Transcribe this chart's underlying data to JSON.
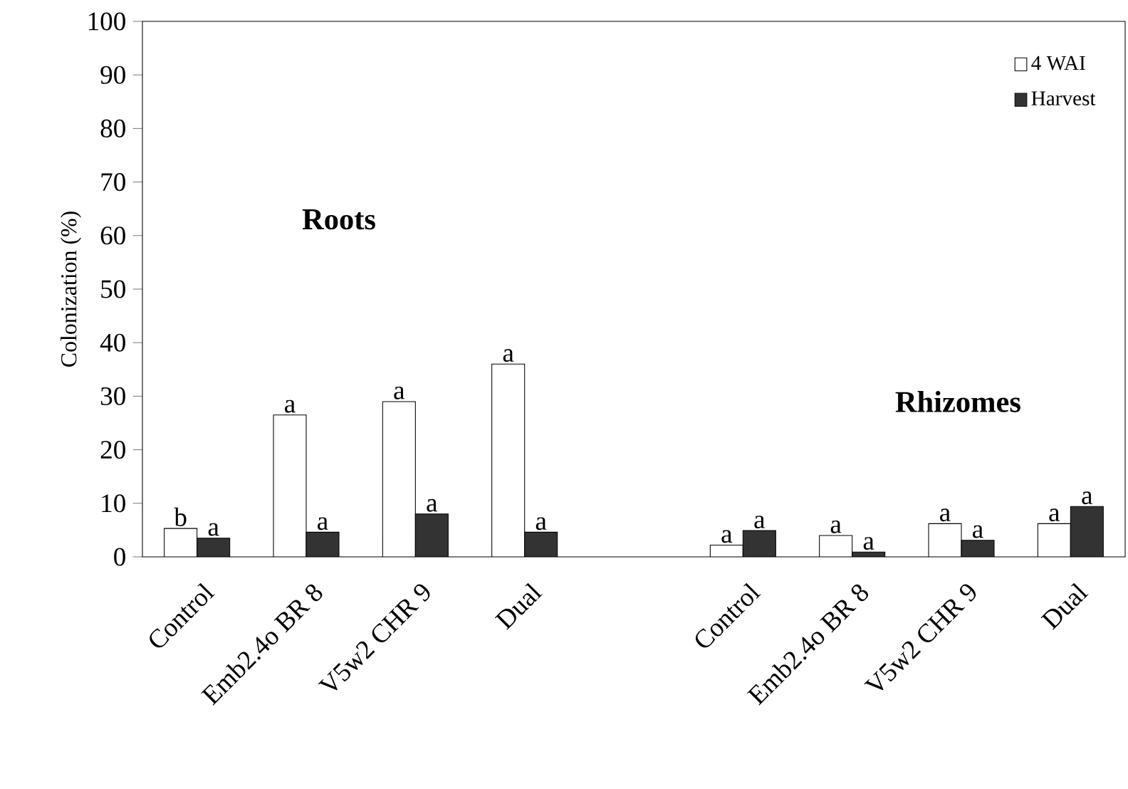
{
  "chart_data": {
    "type": "bar",
    "ylabel": "Colonization (%)",
    "categories": [
      "Control",
      "Emb2.4o BR 8",
      "V5w2 CHR 9",
      "Dual",
      null,
      "Control",
      "Emb2.4o BR 8",
      "V5w2 CHR 9",
      "Dual"
    ],
    "series": [
      {
        "name": "4 WAI",
        "color": "#ffffff",
        "values": [
          5.3,
          26.5,
          29,
          36,
          null,
          2.2,
          4,
          6.2,
          6.2
        ],
        "value_labels": [
          "b",
          "a",
          "a",
          "a",
          null,
          "a",
          "a",
          "a",
          "a"
        ]
      },
      {
        "name": "Harvest",
        "color": "#333333",
        "values": [
          3.5,
          4.6,
          8,
          4.6,
          null,
          4.9,
          0.9,
          3.1,
          9.4
        ],
        "value_labels": [
          "a",
          "a",
          "a",
          "a",
          null,
          "a",
          "a",
          "a",
          "a"
        ]
      }
    ],
    "ylim": [
      0,
      100
    ],
    "yticks": [
      0,
      10,
      20,
      30,
      40,
      50,
      60,
      70,
      80,
      90,
      100
    ],
    "annotations": [
      "Roots",
      "Rhizomes"
    ],
    "legend": "top right"
  }
}
